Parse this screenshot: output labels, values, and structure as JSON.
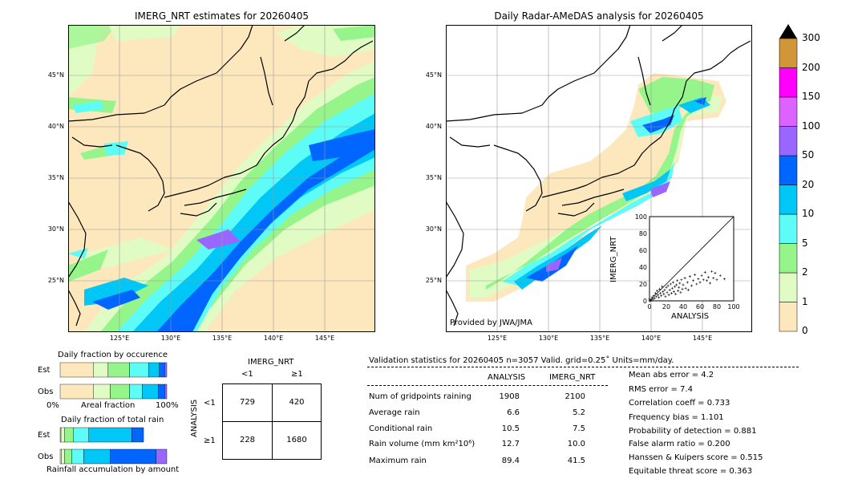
{
  "maps": {
    "left_title": "IMERG_NRT estimates for 20260405",
    "right_title": "Daily Radar-AMeDAS analysis for 20260405",
    "lat_labels": [
      "45°N",
      "40°N",
      "35°N",
      "30°N",
      "25°N"
    ],
    "lon_labels": [
      "125°E",
      "130°E",
      "135°E",
      "140°E",
      "145°E"
    ],
    "credit": "Provided by JWA/JMA"
  },
  "colorbar": {
    "ticks": [
      "0",
      "1",
      "2",
      "5",
      "10",
      "20",
      "50",
      "100",
      "150",
      "200",
      "300"
    ],
    "colors": [
      "#fde8bd",
      "#e0fcc4",
      "#95f58b",
      "#5efcf7",
      "#00c7f6",
      "#0066ff",
      "#9966ff",
      "#dc63ff",
      "#ff00fe",
      "#d09638"
    ],
    "extend_color": "#000000"
  },
  "chart_data": [
    {
      "type": "scatter",
      "xlabel": "ANALYSIS",
      "ylabel": "IMERG_NRT",
      "xlim": [
        0,
        100
      ],
      "ylim": [
        0,
        100
      ],
      "xticks": [
        "0",
        "20",
        "40",
        "60",
        "80",
        "100"
      ],
      "yticks": [
        "0",
        "20",
        "40",
        "60",
        "80",
        "100"
      ],
      "diagonal": true,
      "points": [
        [
          0,
          0
        ],
        [
          1,
          0
        ],
        [
          0,
          2
        ],
        [
          2,
          1
        ],
        [
          3,
          4
        ],
        [
          4,
          2
        ],
        [
          5,
          6
        ],
        [
          6,
          3
        ],
        [
          7,
          9
        ],
        [
          8,
          5
        ],
        [
          9,
          12
        ],
        [
          10,
          7
        ],
        [
          11,
          4
        ],
        [
          12,
          14
        ],
        [
          13,
          9
        ],
        [
          14,
          6
        ],
        [
          15,
          17
        ],
        [
          16,
          11
        ],
        [
          17,
          8
        ],
        [
          18,
          13
        ],
        [
          19,
          5
        ],
        [
          20,
          16
        ],
        [
          21,
          10
        ],
        [
          22,
          18
        ],
        [
          23,
          7
        ],
        [
          24,
          13
        ],
        [
          25,
          20
        ],
        [
          26,
          9
        ],
        [
          27,
          15
        ],
        [
          28,
          22
        ],
        [
          29,
          11
        ],
        [
          30,
          17
        ],
        [
          31,
          8
        ],
        [
          32,
          19
        ],
        [
          33,
          24
        ],
        [
          34,
          12
        ],
        [
          35,
          16
        ],
        [
          36,
          21
        ],
        [
          37,
          10
        ],
        [
          38,
          25
        ],
        [
          39,
          14
        ],
        [
          40,
          19
        ],
        [
          42,
          27
        ],
        [
          43,
          15
        ],
        [
          45,
          22
        ],
        [
          46,
          13
        ],
        [
          48,
          29
        ],
        [
          50,
          18
        ],
        [
          52,
          24
        ],
        [
          54,
          31
        ],
        [
          56,
          20
        ],
        [
          58,
          26
        ],
        [
          60,
          22
        ],
        [
          62,
          30
        ],
        [
          64,
          25
        ],
        [
          66,
          34
        ],
        [
          68,
          24
        ],
        [
          70,
          28
        ],
        [
          72,
          21
        ],
        [
          74,
          35
        ],
        [
          76,
          27
        ],
        [
          78,
          33
        ],
        [
          80,
          25
        ],
        [
          84,
          30
        ],
        [
          89,
          26
        ]
      ]
    },
    {
      "type": "bar",
      "title": "Daily fraction by occurence",
      "categories": [
        "Est",
        "Obs"
      ],
      "stacked": true,
      "xlim": [
        0,
        100
      ],
      "xlabel": "Areal fraction",
      "xtick_left": "0%",
      "xtick_right": "100%",
      "series": [
        {
          "values": [
            31,
            31
          ]
        },
        {
          "values": [
            14,
            16
          ]
        },
        {
          "values": [
            20,
            18
          ]
        },
        {
          "values": [
            18,
            12
          ]
        },
        {
          "values": [
            10,
            15
          ]
        },
        {
          "values": [
            5,
            6
          ]
        },
        {
          "values": [
            2,
            2
          ]
        }
      ]
    },
    {
      "type": "bar",
      "title": "Daily fraction of total rain",
      "xlabel": "Rainfall accumulation by amount",
      "categories": [
        "Est",
        "Obs"
      ],
      "stacked": true,
      "series": [
        {
          "values": [
            1,
            1
          ]
        },
        {
          "values": [
            4,
            3
          ]
        },
        {
          "values": [
            11,
            7
          ]
        },
        {
          "values": [
            18,
            11
          ]
        },
        {
          "values": [
            51,
            25
          ]
        },
        {
          "values": [
            14,
            43
          ]
        },
        {
          "values": [
            0,
            10
          ]
        }
      ]
    }
  ],
  "contingency": {
    "col_title": "IMERG_NRT",
    "col_labels": [
      "<1",
      "≥1"
    ],
    "row_title": "ANALYSIS",
    "row_labels": [
      "<1",
      "≥1"
    ],
    "cells": [
      [
        "729",
        "420"
      ],
      [
        "228",
        "1680"
      ]
    ]
  },
  "stats": {
    "header": "Validation statistics for 20260405  n=3057 Valid. grid=0.25˚ Units=mm/day.",
    "col_analysis": "ANALYSIS",
    "col_imerg": "IMERG_NRT",
    "rows": [
      {
        "label": "Num of gridpoints raining",
        "analysis": "1908",
        "imerg": "2100"
      },
      {
        "label": "Average rain",
        "analysis": "6.6",
        "imerg": "5.2"
      },
      {
        "label": "Conditional rain",
        "analysis": "10.5",
        "imerg": "7.5"
      },
      {
        "label": "Rain volume (mm km²10⁶)",
        "analysis": "12.7",
        "imerg": "10.0"
      },
      {
        "label": "Maximum rain",
        "analysis": "89.4",
        "imerg": "41.5"
      }
    ],
    "right": [
      "Mean abs error =    4.2",
      "RMS error =    7.4",
      "Correlation coeff =  0.733",
      "Frequency bias =  1.101",
      "Probability of detection =  0.881",
      "False alarm ratio =  0.200",
      "Hanssen & Kuipers score =  0.515",
      "Equitable threat score =  0.363"
    ]
  }
}
